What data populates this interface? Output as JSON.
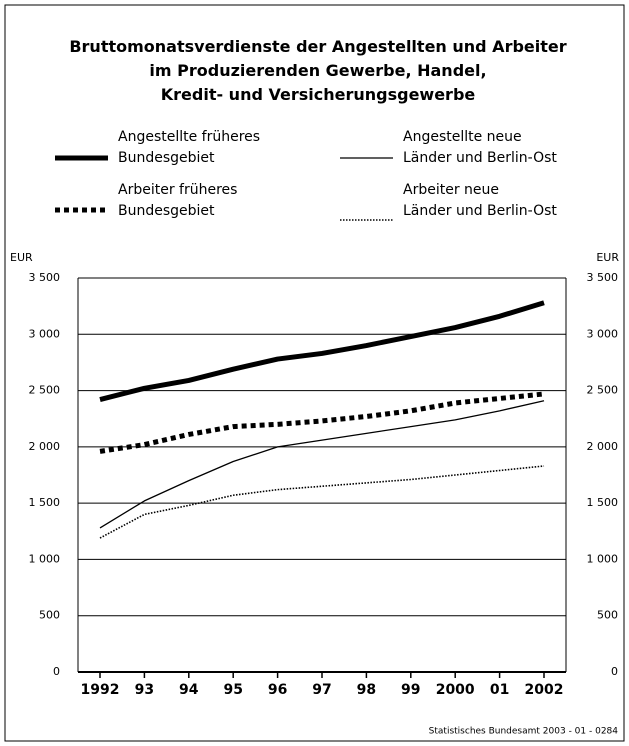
{
  "chart_data": {
    "type": "line",
    "title": "Bruttomonatsverdienste der Angestellten und Arbeiter\nim Produzierenden Gewerbe, Handel,\nKredit- und Versicherungsgewerbe",
    "y_label": "EUR",
    "y2_label": "EUR",
    "source": "Statistisches Bundesamt 2003 - 01 - 0284",
    "categories": [
      "1992",
      "93",
      "94",
      "95",
      "96",
      "97",
      "98",
      "99",
      "2000",
      "01",
      "2002"
    ],
    "series": [
      {
        "name": "Angestellte früheres\nBundesgebiet",
        "color": "#000000",
        "style": "thick-solid",
        "values": [
          2420,
          2520,
          2590,
          2690,
          2780,
          2830,
          2900,
          2980,
          3060,
          3160,
          3280
        ]
      },
      {
        "name": "Angestellte neue\nLänder und Berlin-Ost",
        "color": "#000000",
        "style": "thin-solid",
        "values": [
          1280,
          1520,
          1700,
          1870,
          2000,
          2060,
          2120,
          2180,
          2240,
          2320,
          2410
        ]
      },
      {
        "name": "Arbeiter früheres\nBundesgebiet",
        "color": "#000000",
        "style": "thick-dotted",
        "values": [
          1960,
          2020,
          2110,
          2180,
          2200,
          2230,
          2270,
          2320,
          2390,
          2430,
          2470
        ]
      },
      {
        "name": "Arbeiter neue\nLänder und Berlin-Ost",
        "color": "#000000",
        "style": "thin-dotted",
        "values": [
          1190,
          1400,
          1480,
          1570,
          1620,
          1650,
          1680,
          1710,
          1750,
          1790,
          1830
        ]
      }
    ],
    "ylim": [
      0,
      3500
    ],
    "yticks": [
      0,
      500,
      {
        "value": 1000,
        "label": "1 000"
      },
      {
        "value": 1500,
        "label": "1 500"
      },
      {
        "value": 2000,
        "label": "2 000"
      },
      {
        "value": 2500,
        "label": "2 500"
      },
      {
        "value": 3000,
        "label": "3 000"
      },
      {
        "value": 3500,
        "label": "3 500"
      }
    ],
    "grid": true
  }
}
